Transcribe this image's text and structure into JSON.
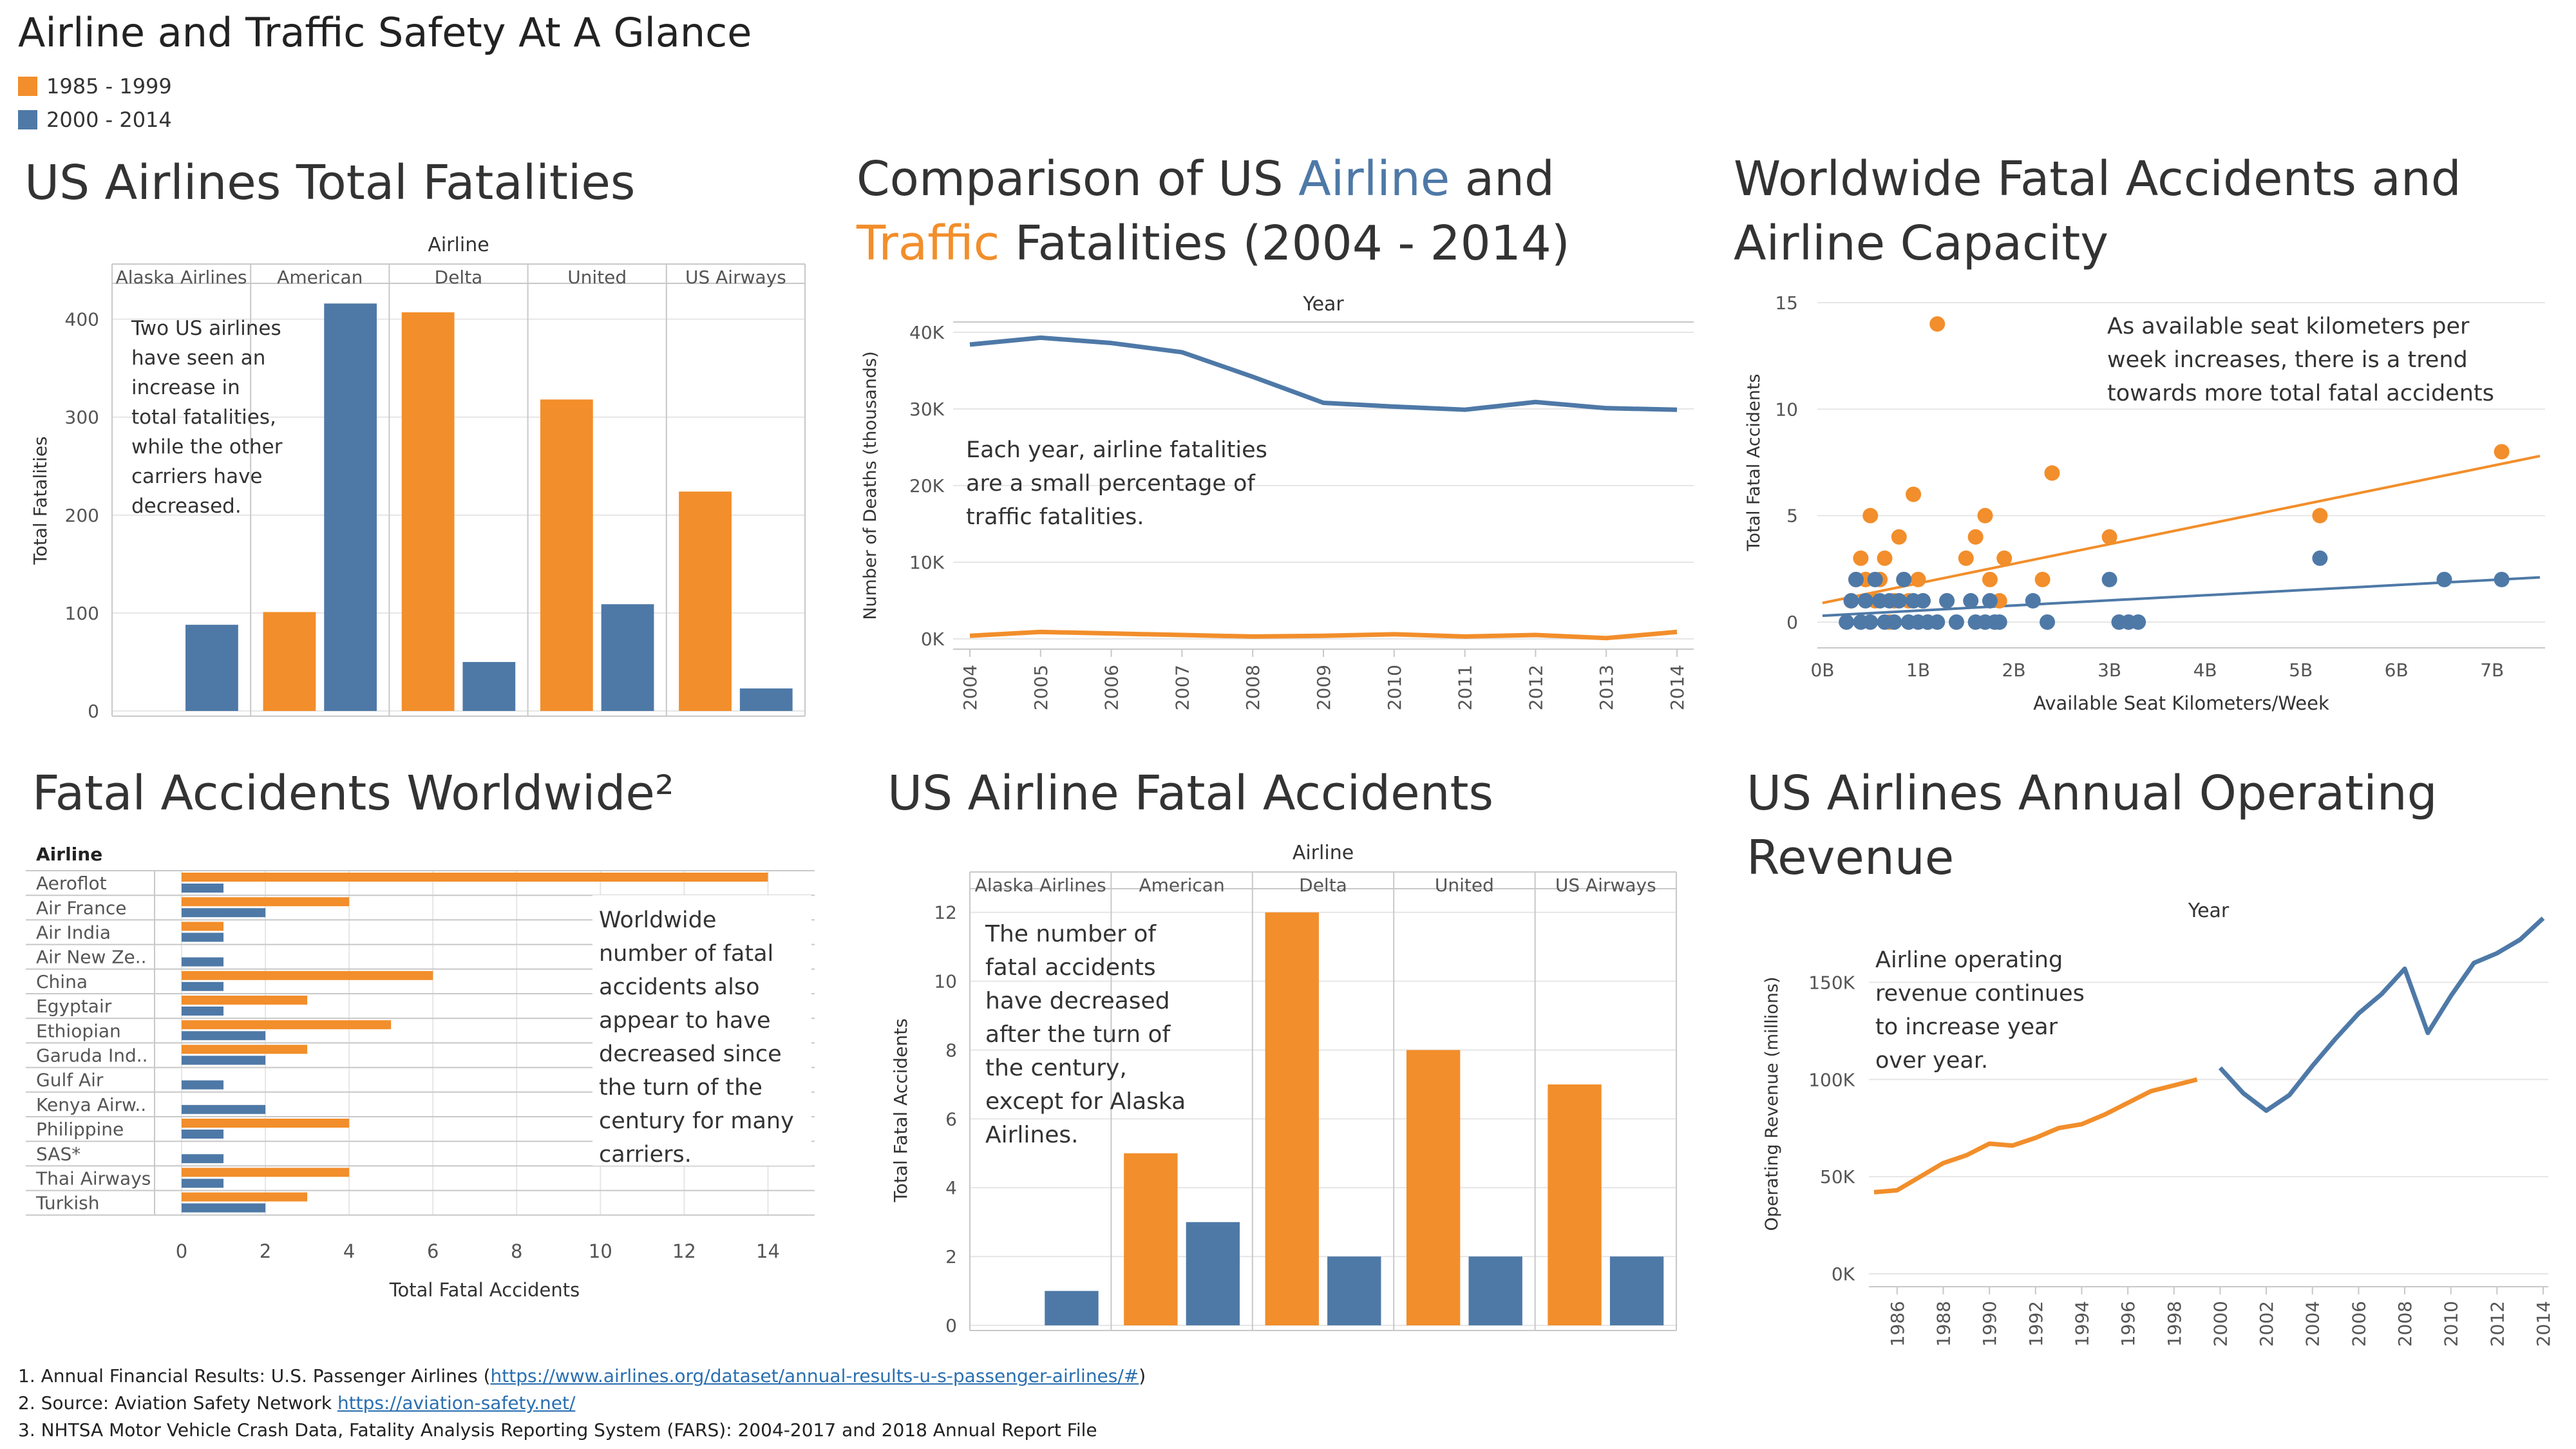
{
  "dashboard": {
    "title": "Airline and Traffic Safety At A Glance",
    "legend": [
      {
        "label": "1985 - 1999",
        "color": "#f28e2b"
      },
      {
        "label": "2000 - 2014",
        "color": "#4e79a7"
      }
    ]
  },
  "colors": {
    "orange": "#f28e2b",
    "blue": "#4e79a7",
    "grid": "#e6e6e6",
    "axis": "#c8c8c8",
    "text": "#555555"
  },
  "chart_data": [
    {
      "id": "fatalities",
      "type": "bar",
      "title": "US Airlines Total Fatalities",
      "column_header": "Airline",
      "categories": [
        "Alaska Airlines",
        "American",
        "Delta",
        "United",
        "US Airways"
      ],
      "series": [
        {
          "name": "1985 - 1999",
          "values": [
            0,
            101,
            407,
            318,
            224
          ]
        },
        {
          "name": "2000 - 2014",
          "values": [
            88,
            416,
            50,
            109,
            23
          ]
        }
      ],
      "ylabel": "Total Fatalities",
      "ylim": [
        0,
        430
      ],
      "yticks": [
        "0",
        "100",
        "200",
        "300",
        "400"
      ],
      "annotation": [
        "Two US airlines",
        "have seen an",
        "increase in",
        "total fatalities,",
        "while the other",
        "carriers have",
        "decreased."
      ]
    },
    {
      "id": "comparison",
      "type": "line",
      "title_parts": [
        "Comparison of US ",
        "Airline",
        " and ",
        "Traffic",
        " Fatalities (2004 - 2014)"
      ],
      "xlabel": "Year",
      "ylabel": "Number of Deaths (thousands)",
      "x": [
        "2004",
        "2005",
        "2006",
        "2007",
        "2008",
        "2009",
        "2010",
        "2011",
        "2012",
        "2013",
        "2014"
      ],
      "series": [
        {
          "name": "Traffic",
          "values": [
            38.4,
            39.3,
            38.6,
            37.4,
            34.2,
            30.8,
            30.3,
            29.9,
            30.9,
            30.1,
            29.9
          ]
        },
        {
          "name": "Airline",
          "values": [
            0.4,
            0.9,
            0.7,
            0.5,
            0.3,
            0.4,
            0.6,
            0.3,
            0.5,
            0.1,
            0.9
          ]
        }
      ],
      "ylim": [
        0,
        40
      ],
      "yticks": [
        "0K",
        "10K",
        "20K",
        "30K",
        "40K"
      ],
      "annotation": [
        "Each year, airline fatalities",
        "are a small percentage of",
        "traffic fatalities."
      ]
    },
    {
      "id": "capacity",
      "type": "scatter",
      "title": "Worldwide Fatal Accidents and Airline Capacity",
      "xlabel": "Available Seat Kilometers/Week",
      "ylabel": "Total Fatal Accidents",
      "xlim": [
        0,
        7.5
      ],
      "ylim": [
        0,
        15
      ],
      "xticks": [
        "0B",
        "1B",
        "2B",
        "3B",
        "4B",
        "5B",
        "6B",
        "7B"
      ],
      "yticks": [
        "0",
        "5",
        "10",
        "15"
      ],
      "series": [
        {
          "name": "1985 - 1999",
          "points": [
            [
              0.3,
              1
            ],
            [
              0.35,
              2
            ],
            [
              0.4,
              3
            ],
            [
              0.45,
              2
            ],
            [
              0.5,
              5
            ],
            [
              0.55,
              1
            ],
            [
              0.6,
              2
            ],
            [
              0.65,
              3
            ],
            [
              0.7,
              0
            ],
            [
              0.75,
              1
            ],
            [
              0.8,
              4
            ],
            [
              0.85,
              2
            ],
            [
              0.9,
              1
            ],
            [
              0.95,
              6
            ],
            [
              1.0,
              2
            ],
            [
              1.05,
              1
            ],
            [
              1.1,
              0
            ],
            [
              1.2,
              14
            ],
            [
              1.3,
              1
            ],
            [
              1.5,
              3
            ],
            [
              1.6,
              4
            ],
            [
              1.7,
              5
            ],
            [
              1.75,
              2
            ],
            [
              1.85,
              1
            ],
            [
              1.9,
              3
            ],
            [
              2.3,
              2
            ],
            [
              2.4,
              7
            ],
            [
              3.0,
              4
            ],
            [
              5.2,
              5
            ],
            [
              7.1,
              8
            ]
          ]
        },
        {
          "name": "2000 - 2014",
          "points": [
            [
              0.25,
              0
            ],
            [
              0.3,
              1
            ],
            [
              0.35,
              2
            ],
            [
              0.4,
              0
            ],
            [
              0.45,
              1
            ],
            [
              0.5,
              0
            ],
            [
              0.55,
              2
            ],
            [
              0.6,
              1
            ],
            [
              0.65,
              0
            ],
            [
              0.7,
              1
            ],
            [
              0.75,
              0
            ],
            [
              0.8,
              1
            ],
            [
              0.85,
              2
            ],
            [
              0.9,
              0
            ],
            [
              0.95,
              1
            ],
            [
              1.0,
              0
            ],
            [
              1.05,
              1
            ],
            [
              1.1,
              0
            ],
            [
              1.2,
              0
            ],
            [
              1.3,
              1
            ],
            [
              1.4,
              0
            ],
            [
              1.55,
              1
            ],
            [
              1.6,
              0
            ],
            [
              1.7,
              0
            ],
            [
              1.75,
              1
            ],
            [
              1.8,
              0
            ],
            [
              1.85,
              0
            ],
            [
              2.2,
              1
            ],
            [
              2.35,
              0
            ],
            [
              3.0,
              2
            ],
            [
              3.1,
              0
            ],
            [
              3.2,
              0
            ],
            [
              3.3,
              0
            ],
            [
              5.2,
              3
            ],
            [
              6.5,
              2
            ],
            [
              7.1,
              2
            ]
          ]
        }
      ],
      "trendlines": [
        {
          "name": "1985 - 1999",
          "from": [
            0,
            0.9
          ],
          "to": [
            7.5,
            7.8
          ]
        },
        {
          "name": "2000 - 2014",
          "from": [
            0,
            0.3
          ],
          "to": [
            7.5,
            2.1
          ]
        }
      ],
      "annotation": [
        "As available seat kilometers per",
        "week increases, there is a trend",
        "towards more total fatal accidents"
      ]
    },
    {
      "id": "worldwide",
      "type": "bar",
      "orientation": "horizontal",
      "title": "Fatal Accidents Worldwide²",
      "row_header": "Airline",
      "categories": [
        "Aeroflot",
        "Air France",
        "Air India",
        "Air New Ze..",
        "China",
        "Egyptair",
        "Ethiopian",
        "Garuda Ind..",
        "Gulf Air",
        "Kenya Airw..",
        "Philippine",
        "SAS*",
        "Thai Airways",
        "Turkish"
      ],
      "series": [
        {
          "name": "1985 - 1999",
          "values": [
            14,
            4,
            1,
            0,
            6,
            3,
            5,
            3,
            0,
            0,
            4,
            0,
            4,
            3
          ]
        },
        {
          "name": "2000 - 2014",
          "values": [
            1,
            2,
            1,
            1,
            1,
            1,
            2,
            2,
            1,
            2,
            1,
            1,
            1,
            2
          ]
        }
      ],
      "xlabel": "Total Fatal Accidents",
      "xlim": [
        0,
        14.5
      ],
      "xticks": [
        "0",
        "2",
        "4",
        "6",
        "8",
        "10",
        "12",
        "14"
      ],
      "annotation": [
        "Worldwide",
        "number of fatal",
        "accidents also",
        "appear to have",
        "decreased since",
        "the turn of the",
        "century for many",
        "carriers."
      ]
    },
    {
      "id": "accidents",
      "type": "bar",
      "title": "US Airline Fatal Accidents",
      "column_header": "Airline",
      "categories": [
        "Alaska Airlines",
        "American",
        "Delta",
        "United",
        "US Airways"
      ],
      "series": [
        {
          "name": "1985 - 1999",
          "values": [
            0,
            5,
            12,
            8,
            7
          ]
        },
        {
          "name": "2000 - 2014",
          "values": [
            1,
            3,
            2,
            2,
            2
          ]
        }
      ],
      "ylabel": "Total Fatal Accidents",
      "ylim": [
        0,
        12.5
      ],
      "yticks": [
        "0",
        "2",
        "4",
        "6",
        "8",
        "10",
        "12"
      ],
      "annotation": [
        "The number of",
        "fatal accidents",
        "have decreased",
        "after the turn of",
        "the century,",
        "except for Alaska",
        "Airlines."
      ]
    },
    {
      "id": "revenue",
      "type": "line",
      "title": "US Airlines Annual Operating Revenue",
      "xlabel": "Year",
      "ylabel": "Operating Revenue (millions)",
      "x": [
        "1986",
        "1988",
        "1990",
        "1992",
        "1994",
        "1996",
        "1998",
        "2000",
        "2002",
        "2004",
        "2006",
        "2008",
        "2010",
        "2012",
        "2014"
      ],
      "series": [
        {
          "name": "1985 - 1999",
          "years": [
            1985,
            1986,
            1987,
            1988,
            1989,
            1990,
            1991,
            1992,
            1993,
            1994,
            1995,
            1996,
            1997,
            1998,
            1999
          ],
          "values": [
            42,
            43,
            50,
            57,
            61,
            67,
            66,
            70,
            75,
            77,
            82,
            88,
            94,
            97,
            100
          ]
        },
        {
          "name": "2000 - 2014",
          "years": [
            2000,
            2001,
            2002,
            2003,
            2004,
            2005,
            2006,
            2007,
            2008,
            2009,
            2010,
            2011,
            2012,
            2013,
            2014
          ],
          "values": [
            106,
            93,
            84,
            92,
            107,
            121,
            134,
            144,
            157,
            124,
            143,
            160,
            165,
            172,
            183
          ]
        }
      ],
      "ylim": [
        0,
        175
      ],
      "yticks": [
        "0K",
        "50K",
        "100K",
        "150K"
      ],
      "annotation": [
        "Airline operating",
        "revenue continues",
        "to increase year",
        "over year."
      ]
    }
  ],
  "footnotes": [
    {
      "text": "1.  Annual Financial Results: U.S. Passenger Airlines (",
      "link": "https://www.airlines.org/dataset/annual-results-u-s-passenger-airlines/#",
      "suffix": ")"
    },
    {
      "text": "2.  Source: Aviation Safety Network ",
      "link": "https://aviation-safety.net/",
      "suffix": ""
    },
    {
      "text": "3.  NHTSA Motor Vehicle Crash Data, Fatality Analysis Reporting System (FARS): 2004-2017 and 2018 Annual Report File",
      "link": "",
      "suffix": ""
    }
  ]
}
